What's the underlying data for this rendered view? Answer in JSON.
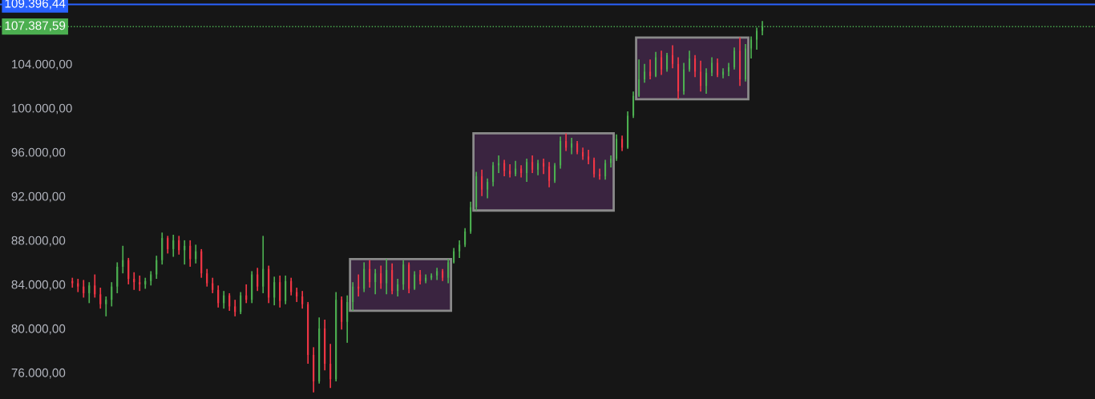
{
  "chart_data": {
    "type": "candlestick",
    "categories": [
      null,
      null,
      null,
      null,
      null,
      null,
      null,
      null,
      null,
      null,
      null,
      null,
      null,
      null,
      null,
      null,
      null,
      null,
      null,
      null,
      null,
      null,
      null,
      null,
      null,
      null,
      null,
      null,
      null,
      null,
      null,
      null,
      null,
      null,
      null,
      null,
      null,
      null,
      null,
      null,
      null,
      null,
      null,
      null,
      null,
      null,
      null,
      null,
      null,
      null,
      null,
      null,
      null,
      null,
      null,
      null,
      null,
      null,
      null,
      null,
      null,
      null,
      null,
      null,
      null,
      null,
      null,
      null,
      null,
      null,
      null,
      null,
      null,
      null,
      null,
      null,
      null,
      null,
      null,
      null,
      null,
      null,
      null,
      null,
      null,
      null,
      null,
      null,
      null,
      null,
      null,
      null,
      null,
      null,
      null,
      null,
      null,
      null,
      null,
      null,
      null,
      null,
      null,
      null,
      null,
      null,
      null,
      null,
      null,
      null,
      null,
      null,
      null,
      null,
      null,
      null,
      null,
      null,
      null,
      null,
      null,
      null,
      null,
      null
    ],
    "ohlc": [
      [
        84300,
        84600,
        83700,
        84100
      ],
      [
        84100,
        84500,
        83300,
        83800
      ],
      [
        83800,
        84400,
        82800,
        83200
      ],
      [
        83200,
        84200,
        82300,
        83900
      ],
      [
        83900,
        84900,
        82800,
        83100
      ],
      [
        83100,
        83700,
        81800,
        82200
      ],
      [
        82200,
        82900,
        81100,
        82600
      ],
      [
        82600,
        84200,
        82000,
        83800
      ],
      [
        83800,
        86000,
        83200,
        85600
      ],
      [
        85600,
        87500,
        85000,
        86200
      ],
      [
        86200,
        86400,
        84000,
        84500
      ],
      [
        84500,
        85100,
        83500,
        84200
      ],
      [
        84200,
        84800,
        83400,
        84000
      ],
      [
        84000,
        84600,
        83600,
        84300
      ],
      [
        84300,
        85200,
        83900,
        84900
      ],
      [
        84900,
        86600,
        84500,
        86200
      ],
      [
        86200,
        88700,
        85800,
        88200
      ],
      [
        88200,
        88400,
        86800,
        87200
      ],
      [
        87200,
        88500,
        86500,
        88000
      ],
      [
        88000,
        88400,
        86700,
        87100
      ],
      [
        87100,
        88000,
        85800,
        87500
      ],
      [
        87500,
        88000,
        85600,
        86300
      ],
      [
        86300,
        87600,
        85900,
        87000
      ],
      [
        87000,
        87200,
        84600,
        85000
      ],
      [
        85000,
        85400,
        83800,
        84100
      ],
      [
        84100,
        84600,
        83200,
        83500
      ],
      [
        83500,
        83900,
        81900,
        82300
      ],
      [
        82300,
        83400,
        81800,
        83000
      ],
      [
        83000,
        83200,
        81600,
        82000
      ],
      [
        82000,
        82600,
        81100,
        81500
      ],
      [
        81500,
        83300,
        81300,
        83000
      ],
      [
        83000,
        84000,
        82300,
        82600
      ],
      [
        82600,
        85200,
        82300,
        84900
      ],
      [
        84900,
        85500,
        83400,
        83800
      ],
      [
        83800,
        88400,
        83200,
        85400
      ],
      [
        85400,
        85700,
        82300,
        82800
      ],
      [
        82800,
        84700,
        82100,
        84200
      ],
      [
        84200,
        84800,
        81900,
        82500
      ],
      [
        82500,
        84800,
        82200,
        84300
      ],
      [
        84300,
        84600,
        83000,
        83300
      ],
      [
        83300,
        83700,
        82400,
        82900
      ],
      [
        82900,
        83400,
        81800,
        82200
      ],
      [
        82200,
        82400,
        76800,
        77600
      ],
      [
        77600,
        78300,
        74200,
        75200
      ],
      [
        75200,
        81000,
        75000,
        80000
      ],
      [
        80000,
        80800,
        76200,
        76800
      ],
      [
        76800,
        78600,
        74600,
        75400
      ],
      [
        75400,
        83300,
        75200,
        82600
      ],
      [
        82600,
        82900,
        79900,
        80600
      ],
      [
        80600,
        83000,
        78700,
        82400
      ],
      [
        82400,
        84200,
        81600,
        83800
      ],
      [
        83800,
        84900,
        82900,
        83600
      ],
      [
        83600,
        86000,
        83300,
        85400
      ],
      [
        85400,
        86200,
        83700,
        84200
      ],
      [
        84200,
        85400,
        83100,
        85000
      ],
      [
        85000,
        85700,
        83600,
        84100
      ],
      [
        84100,
        86300,
        83100,
        85300
      ],
      [
        85300,
        85900,
        83100,
        83400
      ],
      [
        83400,
        84500,
        82900,
        84000
      ],
      [
        84000,
        86200,
        83500,
        85800
      ],
      [
        85800,
        86000,
        83200,
        83600
      ],
      [
        83600,
        85200,
        83500,
        84900
      ],
      [
        84900,
        85300,
        84000,
        84300
      ],
      [
        84300,
        84900,
        84100,
        84600
      ],
      [
        84600,
        85000,
        84400,
        84800
      ],
      [
        84800,
        85500,
        84400,
        85200
      ],
      [
        85200,
        85400,
        84300,
        84600
      ],
      [
        84600,
        86300,
        84100,
        86000
      ],
      [
        86000,
        87300,
        85900,
        87000
      ],
      [
        87000,
        88000,
        86400,
        87600
      ],
      [
        87600,
        89100,
        87400,
        88800
      ],
      [
        88800,
        91500,
        88600,
        91000
      ],
      [
        91000,
        94200,
        90700,
        93800
      ],
      [
        93800,
        94400,
        92000,
        92600
      ],
      [
        92600,
        93600,
        91800,
        93300
      ],
      [
        93300,
        95100,
        92900,
        94800
      ],
      [
        94800,
        95700,
        94100,
        95000
      ],
      [
        95000,
        95300,
        93800,
        94300
      ],
      [
        94300,
        94900,
        93700,
        94000
      ],
      [
        94000,
        95200,
        93800,
        94500
      ],
      [
        94500,
        94800,
        93700,
        94100
      ],
      [
        94100,
        95400,
        93300,
        95100
      ],
      [
        95100,
        95700,
        94100,
        94400
      ],
      [
        94400,
        95300,
        93900,
        95000
      ],
      [
        95000,
        95400,
        94000,
        94700
      ],
      [
        94700,
        95100,
        92800,
        93400
      ],
      [
        93400,
        95000,
        93200,
        94800
      ],
      [
        94800,
        97400,
        94500,
        97000
      ],
      [
        97000,
        97700,
        96100,
        96400
      ],
      [
        96400,
        97300,
        95800,
        96800
      ],
      [
        96800,
        97000,
        95800,
        96000
      ],
      [
        96000,
        96400,
        95300,
        95600
      ],
      [
        95600,
        96200,
        94900,
        95300
      ],
      [
        95300,
        95500,
        93700,
        94000
      ],
      [
        94000,
        94500,
        93500,
        93800
      ],
      [
        93800,
        95300,
        93500,
        95000
      ],
      [
        95000,
        95700,
        94600,
        95400
      ],
      [
        95400,
        97600,
        95200,
        97200
      ],
      [
        97200,
        97500,
        96100,
        96400
      ],
      [
        96400,
        99700,
        96300,
        99300
      ],
      [
        99300,
        101500,
        99100,
        101100
      ],
      [
        101100,
        104400,
        101000,
        102600
      ],
      [
        102600,
        104000,
        102300,
        103300
      ],
      [
        103300,
        104400,
        102600,
        102900
      ],
      [
        102900,
        105100,
        102800,
        104600
      ],
      [
        104600,
        105200,
        103000,
        103500
      ],
      [
        103500,
        105000,
        103300,
        104800
      ],
      [
        104800,
        105700,
        103600,
        104000
      ],
      [
        104000,
        104600,
        100800,
        101500
      ],
      [
        101500,
        104100,
        101200,
        103500
      ],
      [
        103500,
        105200,
        103300,
        104500
      ],
      [
        104500,
        104800,
        102800,
        103300
      ],
      [
        103300,
        104300,
        101500,
        102000
      ],
      [
        102000,
        103600,
        101300,
        103200
      ],
      [
        103200,
        104600,
        102900,
        104100
      ],
      [
        104100,
        104500,
        102800,
        103000
      ],
      [
        103000,
        103600,
        102700,
        103300
      ],
      [
        103300,
        104100,
        102900,
        103700
      ],
      [
        103700,
        105500,
        103500,
        105200
      ],
      [
        105200,
        106400,
        102000,
        102600
      ],
      [
        102600,
        105800,
        102400,
        105400
      ],
      [
        105400,
        106500,
        104500,
        106200
      ],
      [
        106200,
        107300,
        105300,
        107000
      ],
      [
        107000,
        107900,
        106600,
        107400
      ]
    ],
    "colors": [
      "#f23645",
      "#f23645",
      "#f23645",
      "#4caf50",
      "#f23645",
      "#f23645",
      "#4caf50",
      "#4caf50",
      "#4caf50",
      "#4caf50",
      "#f23645",
      "#f23645",
      "#f23645",
      "#4caf50",
      "#4caf50",
      "#4caf50",
      "#4caf50",
      "#f23645",
      "#4caf50",
      "#f23645",
      "#4caf50",
      "#f23645",
      "#4caf50",
      "#f23645",
      "#f23645",
      "#f23645",
      "#f23645",
      "#4caf50",
      "#f23645",
      "#f23645",
      "#4caf50",
      "#f23645",
      "#4caf50",
      "#f23645",
      "#4caf50",
      "#f23645",
      "#4caf50",
      "#f23645",
      "#4caf50",
      "#f23645",
      "#f23645",
      "#f23645",
      "#f23645",
      "#f23645",
      "#4caf50",
      "#f23645",
      "#f23645",
      "#4caf50",
      "#f23645",
      "#4caf50",
      "#4caf50",
      "#f23645",
      "#4caf50",
      "#f23645",
      "#4caf50",
      "#f23645",
      "#4caf50",
      "#f23645",
      "#4caf50",
      "#4caf50",
      "#f23645",
      "#4caf50",
      "#f23645",
      "#4caf50",
      "#4caf50",
      "#4caf50",
      "#f23645",
      "#4caf50",
      "#4caf50",
      "#4caf50",
      "#4caf50",
      "#4caf50",
      "#4caf50",
      "#f23645",
      "#4caf50",
      "#4caf50",
      "#4caf50",
      "#f23645",
      "#f23645",
      "#4caf50",
      "#f23645",
      "#4caf50",
      "#f23645",
      "#4caf50",
      "#f23645",
      "#f23645",
      "#4caf50",
      "#4caf50",
      "#f23645",
      "#4caf50",
      "#f23645",
      "#f23645",
      "#f23645",
      "#f23645",
      "#f23645",
      "#4caf50",
      "#4caf50",
      "#4caf50",
      "#f23645",
      "#4caf50",
      "#4caf50",
      "#4caf50",
      "#4caf50",
      "#f23645",
      "#4caf50",
      "#f23645",
      "#4caf50",
      "#f23645",
      "#f23645",
      "#4caf50",
      "#4caf50",
      "#f23645",
      "#f23645",
      "#4caf50",
      "#4caf50",
      "#f23645",
      "#4caf50",
      "#4caf50",
      "#4caf50",
      "#f23645",
      "#4caf50",
      "#4caf50",
      "#4caf50",
      "#4caf50"
    ],
    "ylim": [
      73600,
      109800
    ],
    "yticks": [
      {
        "value": 76000,
        "label": "76.000,00"
      },
      {
        "value": 80000,
        "label": "80.000,00"
      },
      {
        "value": 84000,
        "label": "84.000,00"
      },
      {
        "value": 88000,
        "label": "88.000,00"
      },
      {
        "value": 92000,
        "label": "92.000,00"
      },
      {
        "value": 96000,
        "label": "96.000,00"
      },
      {
        "value": 100000,
        "label": "100.000,00"
      },
      {
        "value": 104000,
        "label": "104.000,00"
      }
    ],
    "ref_lines": [
      {
        "axis": "y",
        "value": 109396.44,
        "label": "109.396,44",
        "color": "#2962ff",
        "line_style": "solid"
      },
      {
        "axis": "y",
        "value": 107387.59,
        "label": "107.387,59",
        "color": "#4caf50",
        "line_style": "dotted"
      }
    ],
    "grid": false
  }
}
